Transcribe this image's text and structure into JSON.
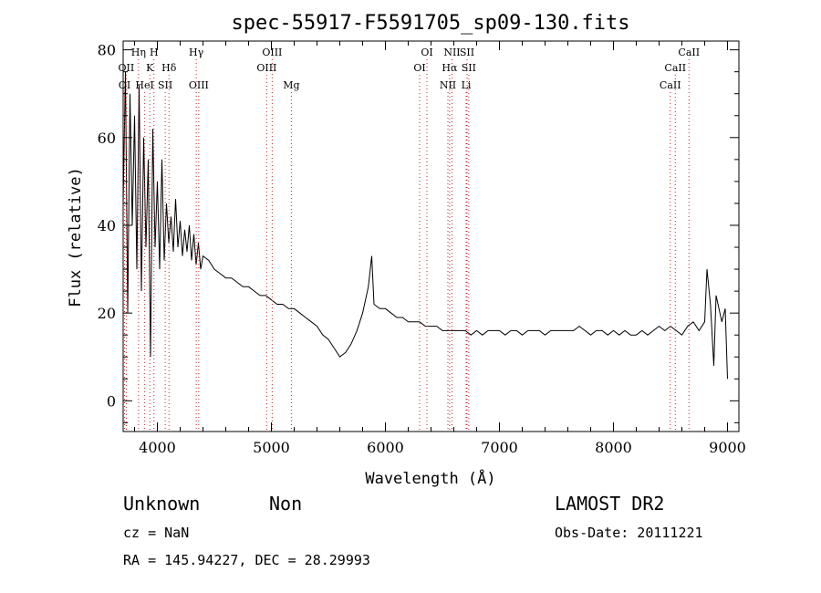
{
  "chart_data": {
    "type": "line",
    "title": "spec-55917-F5591705_sp09-130.fits",
    "xlabel": "Wavelength (Å)",
    "ylabel": "Flux (relative)",
    "xlim": [
      3700,
      9100
    ],
    "ylim": [
      -7,
      82
    ],
    "xticks": [
      4000,
      5000,
      6000,
      7000,
      8000,
      9000
    ],
    "yticks": [
      0,
      20,
      40,
      60,
      80
    ],
    "grid": false,
    "series": [
      {
        "values_note_free": true,
        "x": [
          3700,
          3720,
          3740,
          3760,
          3780,
          3800,
          3820,
          3840,
          3860,
          3880,
          3900,
          3920,
          3940,
          3960,
          3980,
          4000,
          4020,
          4040,
          4060,
          4080,
          4100,
          4120,
          4140,
          4160,
          4180,
          4200,
          4220,
          4240,
          4260,
          4280,
          4300,
          4320,
          4340,
          4360,
          4380,
          4400,
          4450,
          4500,
          4550,
          4600,
          4650,
          4700,
          4750,
          4800,
          4850,
          4900,
          4950,
          5000,
          5050,
          5100,
          5150,
          5200,
          5250,
          5300,
          5350,
          5400,
          5450,
          5500,
          5550,
          5600,
          5650,
          5700,
          5750,
          5800,
          5850,
          5880,
          5900,
          5950,
          6000,
          6050,
          6100,
          6150,
          6200,
          6250,
          6300,
          6350,
          6400,
          6450,
          6500,
          6550,
          6600,
          6650,
          6700,
          6750,
          6800,
          6850,
          6900,
          6950,
          7000,
          7050,
          7100,
          7150,
          7200,
          7250,
          7300,
          7350,
          7400,
          7450,
          7500,
          7550,
          7600,
          7650,
          7700,
          7750,
          7800,
          7850,
          7900,
          7950,
          8000,
          8050,
          8100,
          8150,
          8200,
          8250,
          8300,
          8350,
          8400,
          8450,
          8500,
          8550,
          8600,
          8650,
          8700,
          8750,
          8800,
          8820,
          8850,
          8880,
          8900,
          8950,
          8980,
          9000
        ],
        "y": [
          45,
          75,
          20,
          70,
          40,
          65,
          30,
          72,
          25,
          60,
          35,
          55,
          10,
          62,
          35,
          50,
          30,
          55,
          32,
          45,
          36,
          42,
          34,
          46,
          35,
          41,
          33,
          39,
          34,
          40,
          32,
          38,
          31,
          36,
          30,
          33,
          32,
          30,
          29,
          28,
          28,
          27,
          26,
          26,
          25,
          24,
          24,
          23,
          22,
          22,
          21,
          21,
          20,
          19,
          18,
          17,
          15,
          14,
          12,
          10,
          11,
          13,
          16,
          20,
          26,
          33,
          22,
          21,
          21,
          20,
          19,
          19,
          18,
          18,
          18,
          17,
          17,
          17,
          16,
          16,
          16,
          16,
          16,
          15,
          16,
          15,
          16,
          16,
          16,
          15,
          16,
          16,
          15,
          16,
          16,
          16,
          15,
          16,
          16,
          16,
          16,
          16,
          17,
          16,
          15,
          16,
          16,
          15,
          16,
          15,
          16,
          15,
          15,
          16,
          15,
          16,
          17,
          16,
          17,
          16,
          15,
          17,
          18,
          16,
          18,
          30,
          22,
          8,
          24,
          18,
          21,
          5
        ]
      }
    ],
    "line_markers": [
      {
        "label": "OII",
        "x": 3727,
        "row": 1
      },
      {
        "label": "OI",
        "x": 3712,
        "row": 2
      },
      {
        "label": "Hη",
        "x": 3835,
        "row": 0
      },
      {
        "label": "H",
        "x": 3970,
        "row": 0
      },
      {
        "label": "K",
        "x": 3934,
        "row": 1
      },
      {
        "label": "Hδ",
        "x": 4102,
        "row": 1
      },
      {
        "label": "HeI",
        "x": 3889,
        "row": 2
      },
      {
        "label": "SII",
        "x": 4069,
        "row": 2
      },
      {
        "label": "Hγ",
        "x": 4341,
        "row": 0
      },
      {
        "label": "OIII",
        "x": 4363,
        "row": 2
      },
      {
        "label": "OIII",
        "x": 5007,
        "row": 0
      },
      {
        "label": "OIII",
        "x": 4959,
        "row": 1
      },
      {
        "label": "Mg",
        "x": 5175,
        "row": 2
      },
      {
        "label": "OI",
        "x": 6364,
        "row": 0
      },
      {
        "label": "OI",
        "x": 6300,
        "row": 1
      },
      {
        "label": "NII",
        "x": 6584,
        "row": 0
      },
      {
        "label": "SII",
        "x": 6716,
        "row": 0
      },
      {
        "label": "Hα",
        "x": 6563,
        "row": 1
      },
      {
        "label": "SII",
        "x": 6731,
        "row": 1
      },
      {
        "label": "NII",
        "x": 6548,
        "row": 2
      },
      {
        "label": "Li",
        "x": 6708,
        "row": 2
      },
      {
        "label": "CaII",
        "x": 8662,
        "row": 0
      },
      {
        "label": "CaII",
        "x": 8542,
        "row": 1
      },
      {
        "label": "CaII",
        "x": 8498,
        "row": 2
      }
    ]
  },
  "info": {
    "class": "Unknown",
    "subclass": "Non",
    "survey": "LAMOST DR2",
    "cz": "cz = NaN",
    "obs_date": "Obs-Date: 20111221",
    "coords": "RA = 145.94227, DEC =  28.29993"
  },
  "colors": {
    "spectrum": "#000000",
    "marker_line": "#cc2222",
    "axes": "#000000"
  }
}
